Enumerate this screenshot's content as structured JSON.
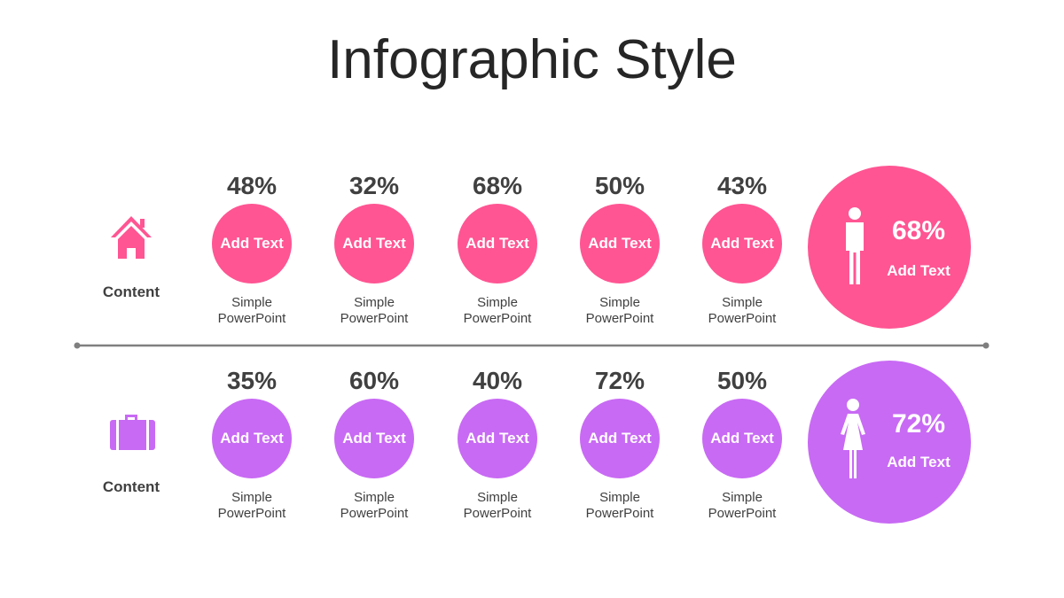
{
  "header": {
    "title": "Infographic Style"
  },
  "rows": [
    {
      "label": "Content",
      "items": [
        {
          "percent": "48%",
          "circle_text": "Add Text",
          "caption": "Simple PowerPoint"
        },
        {
          "percent": "32%",
          "circle_text": "Add Text",
          "caption": "Simple PowerPoint"
        },
        {
          "percent": "68%",
          "circle_text": "Add Text",
          "caption": "Simple PowerPoint"
        },
        {
          "percent": "50%",
          "circle_text": "Add Text",
          "caption": "Simple PowerPoint"
        },
        {
          "percent": "43%",
          "circle_text": "Add Text",
          "caption": "Simple PowerPoint"
        }
      ],
      "highlight": {
        "percent": "68%",
        "text": "Add Text"
      }
    },
    {
      "label": "Content",
      "items": [
        {
          "percent": "35%",
          "circle_text": "Add Text",
          "caption": "Simple PowerPoint"
        },
        {
          "percent": "60%",
          "circle_text": "Add Text",
          "caption": "Simple PowerPoint"
        },
        {
          "percent": "40%",
          "circle_text": "Add Text",
          "caption": "Simple PowerPoint"
        },
        {
          "percent": "72%",
          "circle_text": "Add Text",
          "caption": "Simple PowerPoint"
        },
        {
          "percent": "50%",
          "circle_text": "Add Text",
          "caption": "Simple PowerPoint"
        }
      ],
      "highlight": {
        "percent": "72%",
        "text": "Add Text"
      }
    }
  ]
}
